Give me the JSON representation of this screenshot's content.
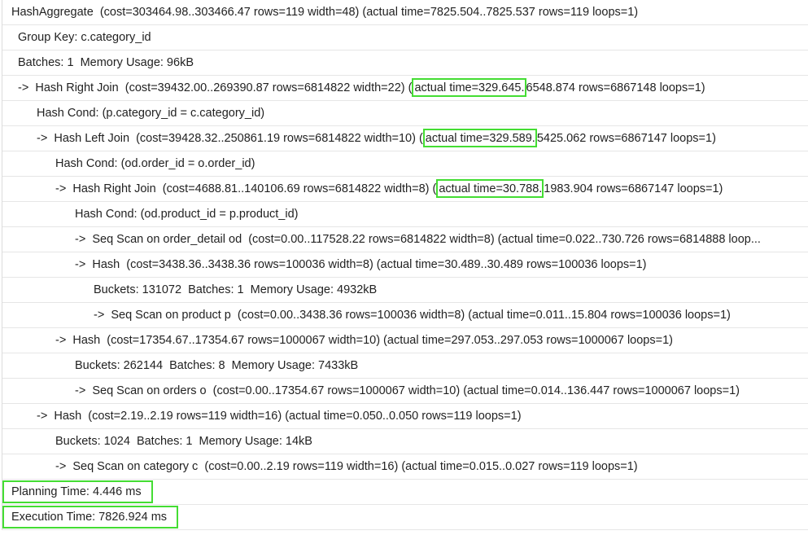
{
  "plan_rows": [
    {
      "pre": "HashAggregate  (cost=303464.98..303466.47 rows=119 width=48) (actual time=7825.504..7825.537 rows=119 loops=1)",
      "hl": "",
      "post": ""
    },
    {
      "pre": "Group Key: c.category_id",
      "hl": "",
      "post": ""
    },
    {
      "pre": "Batches: 1  Memory Usage: 96kB",
      "hl": "",
      "post": ""
    },
    {
      "pre": "->  Hash Right Join  (cost=39432.00..269390.87 rows=6814822 width=22) (",
      "hl": "actual time=329.645.",
      "post": "6548.874 rows=6867148 loops=1)"
    },
    {
      "pre": "Hash Cond: (p.category_id = c.category_id)",
      "hl": "",
      "post": ""
    },
    {
      "pre": "->  Hash Left Join  (cost=39428.32..250861.19 rows=6814822 width=10) (",
      "hl": "actual time=329.589.",
      "post": "5425.062 rows=6867147 loops=1)"
    },
    {
      "pre": "Hash Cond: (od.order_id = o.order_id)",
      "hl": "",
      "post": ""
    },
    {
      "pre": "->  Hash Right Join  (cost=4688.81..140106.69 rows=6814822 width=8) (",
      "hl": "actual time=30.788.",
      "post": "1983.904 rows=6867147 loops=1)"
    },
    {
      "pre": "Hash Cond: (od.product_id = p.product_id)",
      "hl": "",
      "post": ""
    },
    {
      "pre": "->  Seq Scan on order_detail od  (cost=0.00..117528.22 rows=6814822 width=8) (actual time=0.022..730.726 rows=6814888 loop...",
      "hl": "",
      "post": ""
    },
    {
      "pre": "->  Hash  (cost=3438.36..3438.36 rows=100036 width=8) (actual time=30.489..30.489 rows=100036 loops=1)",
      "hl": "",
      "post": ""
    },
    {
      "pre": "Buckets: 131072  Batches: 1  Memory Usage: 4932kB",
      "hl": "",
      "post": ""
    },
    {
      "pre": "->  Seq Scan on product p  (cost=0.00..3438.36 rows=100036 width=8) (actual time=0.011..15.804 rows=100036 loops=1)",
      "hl": "",
      "post": ""
    },
    {
      "pre": "->  Hash  (cost=17354.67..17354.67 rows=1000067 width=10) (actual time=297.053..297.053 rows=1000067 loops=1)",
      "hl": "",
      "post": ""
    },
    {
      "pre": "Buckets: 262144  Batches: 8  Memory Usage: 7433kB",
      "hl": "",
      "post": ""
    },
    {
      "pre": "->  Seq Scan on orders o  (cost=0.00..17354.67 rows=1000067 width=10) (actual time=0.014..136.447 rows=1000067 loops=1)",
      "hl": "",
      "post": ""
    },
    {
      "pre": "->  Hash  (cost=2.19..2.19 rows=119 width=16) (actual time=0.050..0.050 rows=119 loops=1)",
      "hl": "",
      "post": ""
    },
    {
      "pre": "Buckets: 1024  Batches: 1  Memory Usage: 14kB",
      "hl": "",
      "post": ""
    },
    {
      "pre": "->  Seq Scan on category c  (cost=0.00..2.19 rows=119 width=16) (actual time=0.015..0.027 rows=119 loops=1)",
      "hl": "",
      "post": ""
    }
  ],
  "footer": {
    "planning": "Planning Time: 4.446 ms",
    "execution": "Execution Time: 7826.924 ms"
  },
  "colors": {
    "highlight": "#44dd33"
  }
}
